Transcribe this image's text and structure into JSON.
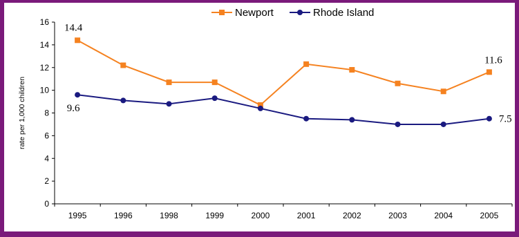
{
  "colors": {
    "frame": "#7a1a7a",
    "newport": "#f58220",
    "rhode_island": "#1a1a80",
    "axis": "#000000"
  },
  "chart_data": {
    "type": "line",
    "title": "",
    "xlabel": "",
    "ylabel": "rate per 1,000 children",
    "categories": [
      "1995",
      "1996",
      "1998",
      "1999",
      "2000",
      "2001",
      "2002",
      "2003",
      "2004",
      "2005"
    ],
    "ylim": [
      0,
      16
    ],
    "yticks": [
      "0",
      "2",
      "4",
      "6",
      "8",
      "10",
      "12",
      "14",
      "16"
    ],
    "grid": false,
    "legend_position": "top-center",
    "series": [
      {
        "name": "Newport",
        "marker": "square",
        "values": [
          14.4,
          12.2,
          10.7,
          10.7,
          8.7,
          12.3,
          11.8,
          10.6,
          9.9,
          11.6
        ]
      },
      {
        "name": "Rhode Island",
        "marker": "circle",
        "values": [
          9.6,
          9.1,
          8.8,
          9.3,
          8.4,
          7.5,
          7.4,
          7.0,
          7.0,
          7.5
        ]
      }
    ],
    "annotations": [
      {
        "series": 0,
        "index": 0,
        "text": "14.4"
      },
      {
        "series": 1,
        "index": 0,
        "text": "9.6"
      },
      {
        "series": 0,
        "index": 9,
        "text": "11.6"
      },
      {
        "series": 1,
        "index": 9,
        "text": "7.5"
      }
    ]
  }
}
